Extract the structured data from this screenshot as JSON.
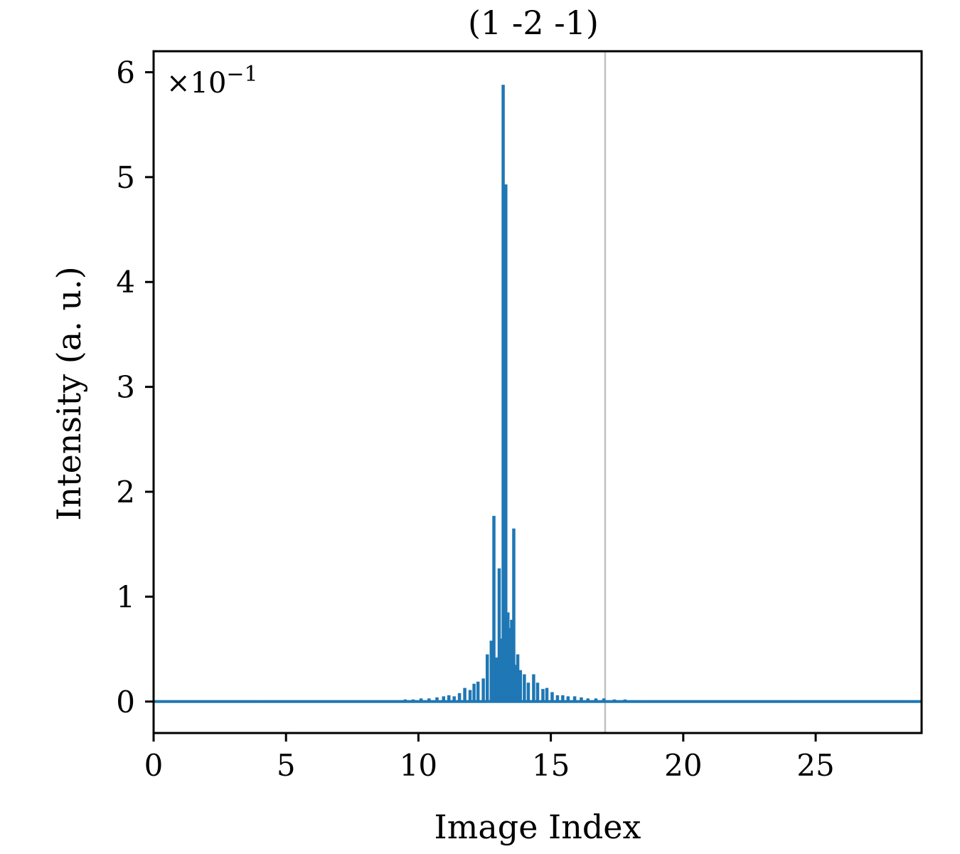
{
  "chart_data": {
    "type": "line",
    "title": "(1 -2 -1)",
    "xlabel": "Image Index",
    "ylabel": "Intensity (a. u.)",
    "y_multiplier": {
      "base": "×10",
      "exponent": "−1"
    },
    "xlim": [
      0,
      29
    ],
    "ylim": [
      -0.3,
      6.2
    ],
    "x_ticks": [
      0,
      5,
      10,
      15,
      20,
      25
    ],
    "y_ticks": [
      0,
      1,
      2,
      3,
      4,
      5,
      6
    ],
    "grid": false,
    "vertical_line": {
      "x": 17.05,
      "color": "#c0c0c0"
    },
    "series": [
      {
        "color": "#1f77b4",
        "spikes": [
          {
            "x": 9.3,
            "y": 0.01
          },
          {
            "x": 9.5,
            "y": 0.02
          },
          {
            "x": 9.8,
            "y": 0.02
          },
          {
            "x": 10.1,
            "y": 0.03
          },
          {
            "x": 10.4,
            "y": 0.03
          },
          {
            "x": 10.7,
            "y": 0.04
          },
          {
            "x": 10.95,
            "y": 0.05
          },
          {
            "x": 11.15,
            "y": 0.06
          },
          {
            "x": 11.35,
            "y": 0.05
          },
          {
            "x": 11.55,
            "y": 0.08
          },
          {
            "x": 11.75,
            "y": 0.13
          },
          {
            "x": 11.95,
            "y": 0.11
          },
          {
            "x": 12.1,
            "y": 0.17
          },
          {
            "x": 12.25,
            "y": 0.19
          },
          {
            "x": 12.45,
            "y": 0.22
          },
          {
            "x": 12.6,
            "y": 0.45
          },
          {
            "x": 12.75,
            "y": 0.58
          },
          {
            "x": 12.85,
            "y": 1.77
          },
          {
            "x": 12.95,
            "y": 0.42
          },
          {
            "x": 13.05,
            "y": 1.27
          },
          {
            "x": 13.12,
            "y": 0.6
          },
          {
            "x": 13.2,
            "y": 5.88
          },
          {
            "x": 13.3,
            "y": 4.93
          },
          {
            "x": 13.38,
            "y": 0.85
          },
          {
            "x": 13.45,
            "y": 0.7
          },
          {
            "x": 13.52,
            "y": 0.78
          },
          {
            "x": 13.6,
            "y": 1.65
          },
          {
            "x": 13.68,
            "y": 0.35
          },
          {
            "x": 13.75,
            "y": 0.45
          },
          {
            "x": 13.85,
            "y": 0.3
          },
          {
            "x": 14.0,
            "y": 0.26
          },
          {
            "x": 14.15,
            "y": 0.18
          },
          {
            "x": 14.35,
            "y": 0.26
          },
          {
            "x": 14.5,
            "y": 0.18
          },
          {
            "x": 14.7,
            "y": 0.12
          },
          {
            "x": 14.85,
            "y": 0.13
          },
          {
            "x": 15.05,
            "y": 0.09
          },
          {
            "x": 15.25,
            "y": 0.06
          },
          {
            "x": 15.45,
            "y": 0.06
          },
          {
            "x": 15.65,
            "y": 0.05
          },
          {
            "x": 15.9,
            "y": 0.05
          },
          {
            "x": 16.15,
            "y": 0.04
          },
          {
            "x": 16.4,
            "y": 0.03
          },
          {
            "x": 16.7,
            "y": 0.03
          },
          {
            "x": 17.0,
            "y": 0.03
          },
          {
            "x": 17.4,
            "y": 0.02
          },
          {
            "x": 17.8,
            "y": 0.02
          },
          {
            "x": 18.3,
            "y": 0.01
          },
          {
            "x": 18.9,
            "y": 0.01
          }
        ]
      }
    ]
  }
}
